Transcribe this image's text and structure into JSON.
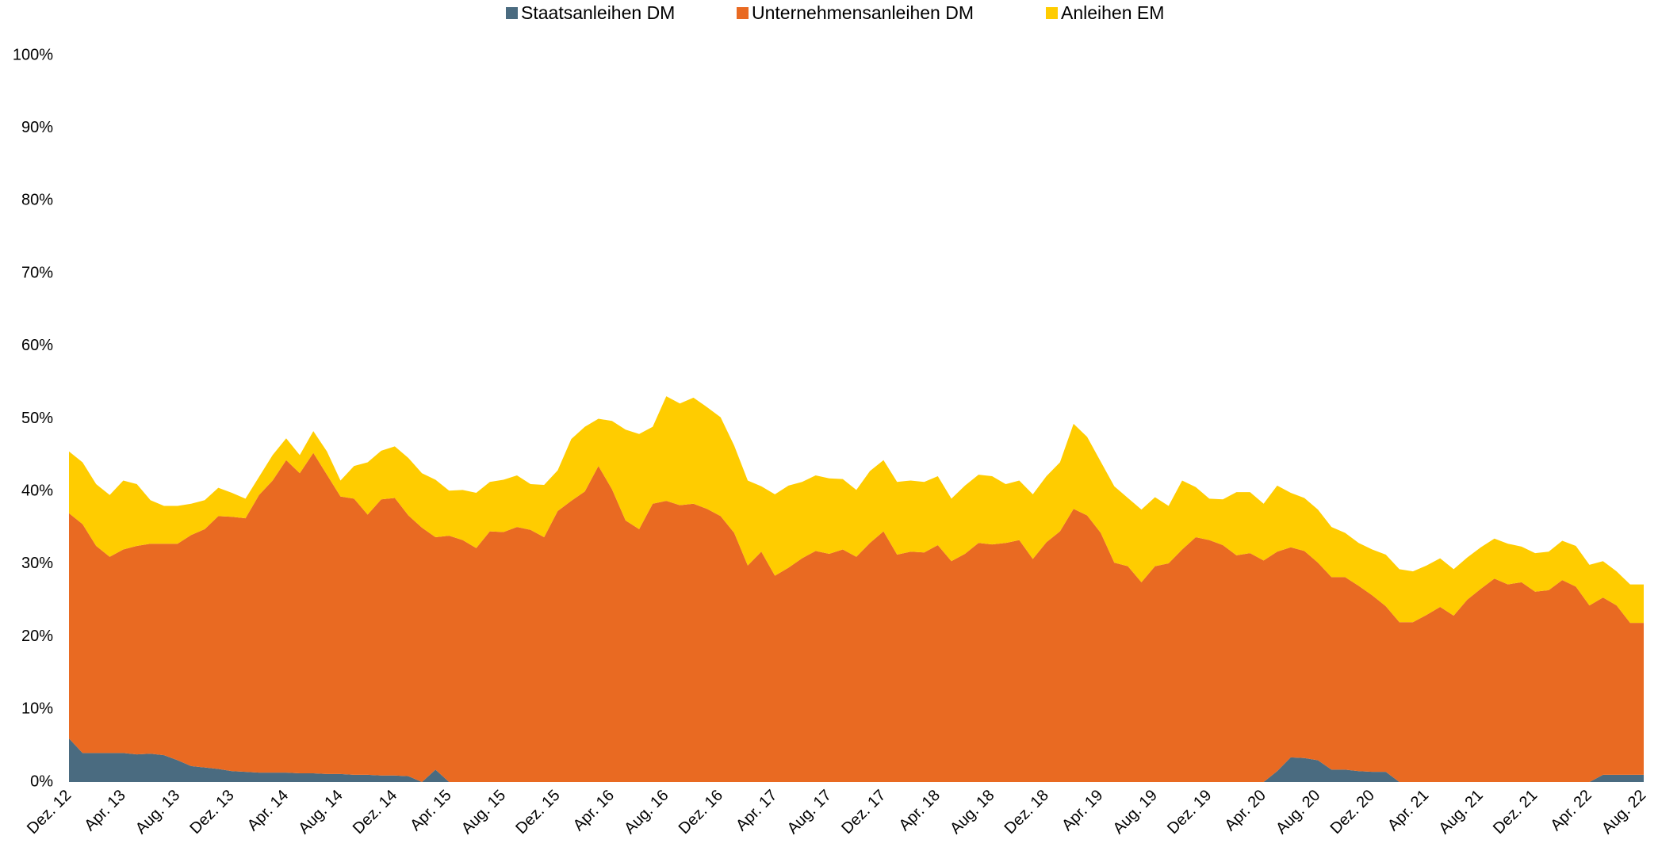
{
  "chart_data": {
    "type": "stacked_area",
    "categories": [
      "Dez. 12",
      null,
      null,
      null,
      "Apr. 13",
      null,
      null,
      null,
      "Aug. 13",
      null,
      null,
      null,
      "Dez. 13",
      null,
      null,
      null,
      "Apr. 14",
      null,
      null,
      null,
      "Aug. 14",
      null,
      null,
      null,
      "Dez. 14",
      null,
      null,
      null,
      "Apr. 15",
      null,
      null,
      null,
      "Aug. 15",
      null,
      null,
      null,
      "Dez. 15",
      null,
      null,
      null,
      "Apr. 16",
      null,
      null,
      null,
      "Aug. 16",
      null,
      null,
      null,
      "Dez. 16",
      null,
      null,
      null,
      "Apr. 17",
      null,
      null,
      null,
      "Aug. 17",
      null,
      null,
      null,
      "Dez. 17",
      null,
      null,
      null,
      "Apr. 18",
      null,
      null,
      null,
      "Aug. 18",
      null,
      null,
      null,
      "Dez. 18",
      null,
      null,
      null,
      "Apr. 19",
      null,
      null,
      null,
      "Aug. 19",
      null,
      null,
      null,
      "Dez. 19",
      null,
      null,
      null,
      "Apr. 20",
      null,
      null,
      null,
      "Aug. 20",
      null,
      null,
      null,
      "Dez. 20",
      null,
      null,
      null,
      "Apr. 21",
      null,
      null,
      null,
      "Aug. 21",
      null,
      null,
      null,
      "Dez. 21",
      null,
      null,
      null,
      "Apr. 22",
      null,
      null,
      null,
      "Aug. 22"
    ],
    "series": [
      {
        "name": "Staatsanleihen DM",
        "color": "#4a6b80",
        "values": [
          6,
          4,
          4,
          4,
          4,
          3.8,
          3.9,
          3.7,
          3,
          2.2,
          2,
          1.8,
          1.5,
          1.4,
          1.3,
          1.3,
          1.3,
          1.2,
          1.2,
          1.1,
          1.1,
          1,
          1,
          0.9,
          0.9,
          0.8,
          0,
          1.7,
          0,
          0,
          0,
          0,
          0,
          0,
          0,
          0,
          0,
          0,
          0,
          0,
          0,
          0,
          0,
          0,
          0,
          0,
          0,
          0,
          0,
          0,
          0,
          0,
          0,
          0,
          0,
          0,
          0,
          0,
          0,
          0,
          0,
          0,
          0,
          0,
          0,
          0,
          0,
          0,
          0,
          0,
          0,
          0,
          0,
          0,
          0,
          0,
          0,
          0,
          0,
          0,
          0,
          0,
          0,
          0,
          0,
          0,
          0,
          0,
          0,
          1.5,
          3.4,
          3.3,
          3,
          1.7,
          1.7,
          1.5,
          1.4,
          1.4,
          0,
          0,
          0,
          0,
          0,
          0,
          0,
          0,
          0,
          0,
          0,
          0,
          0,
          0,
          0,
          1,
          1,
          1,
          1
        ]
      },
      {
        "name": "Unternehmensanleihen DM",
        "color": "#e96a22",
        "values": [
          31,
          31.5,
          28.5,
          27,
          28,
          28.7,
          28.9,
          29.1,
          29.8,
          31.8,
          32.8,
          34.8,
          35,
          34.9,
          38.2,
          40.2,
          43,
          41.3,
          44.1,
          41.2,
          38.2,
          38,
          35.8,
          38,
          38.2,
          35.9,
          35,
          32,
          33.9,
          33.3,
          32.2,
          34.5,
          34.4,
          35.1,
          34.7,
          33.7,
          37.3,
          38.7,
          40,
          43.5,
          40.3,
          36,
          34.8,
          38.3,
          38.7,
          38.1,
          38.3,
          37.6,
          36.6,
          34.3,
          29.8,
          31.7,
          28.4,
          29.5,
          30.8,
          31.8,
          31.4,
          32,
          31,
          32.9,
          34.5,
          31.3,
          31.7,
          31.6,
          32.6,
          30.4,
          31.4,
          32.9,
          32.7,
          32.9,
          33.3,
          30.7,
          33,
          34.5,
          37.6,
          36.7,
          34.3,
          30.2,
          29.7,
          27.5,
          29.7,
          30.1,
          32,
          33.7,
          33.3,
          32.6,
          31.2,
          31.5,
          30.5,
          30.2,
          28.9,
          28.5,
          27.2,
          26.5,
          26.5,
          25.5,
          24.3,
          22.8,
          22,
          22,
          23,
          24.1,
          22.9,
          25.1,
          26.6,
          28,
          27.2,
          27.5,
          26.2,
          26.4,
          27.8,
          26.9,
          24.3,
          24.4,
          23.3,
          20.9,
          20.9
        ]
      },
      {
        "name": "Anleihen EM",
        "color": "#ffcc00",
        "values": [
          8.5,
          8.5,
          8.5,
          8.5,
          9.5,
          8.5,
          6,
          5.2,
          5.2,
          4.3,
          4,
          3.9,
          3.3,
          2.7,
          2.5,
          3.5,
          3,
          2.5,
          3,
          3.2,
          2.2,
          4.5,
          7.2,
          6.7,
          7.1,
          7.9,
          7.5,
          7.9,
          6.2,
          6.9,
          7.6,
          6.8,
          7.2,
          7.1,
          6.3,
          7.2,
          5.6,
          8.5,
          8.9,
          6.5,
          9.4,
          12.5,
          13.1,
          10.6,
          14.4,
          14,
          14.6,
          14,
          13.6,
          12,
          11.7,
          9,
          11.2,
          11.3,
          10.5,
          10.4,
          10.4,
          9.7,
          9.2,
          9.9,
          9.8,
          10,
          9.8,
          9.7,
          9.5,
          8.6,
          9.4,
          9.4,
          9.4,
          8.1,
          8.2,
          8.9,
          9.1,
          9.5,
          11.7,
          10.8,
          9.8,
          10.5,
          9.4,
          10,
          9.5,
          7.9,
          9.5,
          6.9,
          5.7,
          6.3,
          8.7,
          8.4,
          7.8,
          9.1,
          7.5,
          7.3,
          7.3,
          6.9,
          6.1,
          5.9,
          6.3,
          7.1,
          7.3,
          7,
          6.8,
          6.7,
          6.4,
          5.8,
          5.7,
          5.5,
          5.6,
          4.9,
          5.3,
          5.3,
          5.4,
          5.6,
          5.6,
          5,
          4.7,
          5.3,
          5.3
        ]
      }
    ],
    "ylim": [
      0,
      100
    ],
    "yticks": [
      {
        "value": 0,
        "label": "0%"
      },
      {
        "value": 10,
        "label": "10%"
      },
      {
        "value": 20,
        "label": "20%"
      },
      {
        "value": 30,
        "label": "30%"
      },
      {
        "value": 40,
        "label": "40%"
      },
      {
        "value": 50,
        "label": "50%"
      },
      {
        "value": 60,
        "label": "60%"
      },
      {
        "value": 70,
        "label": "70%"
      },
      {
        "value": 80,
        "label": "80%"
      },
      {
        "value": 90,
        "label": "90%"
      },
      {
        "value": 100,
        "label": "100%"
      }
    ],
    "grid": false,
    "legend": "top"
  }
}
